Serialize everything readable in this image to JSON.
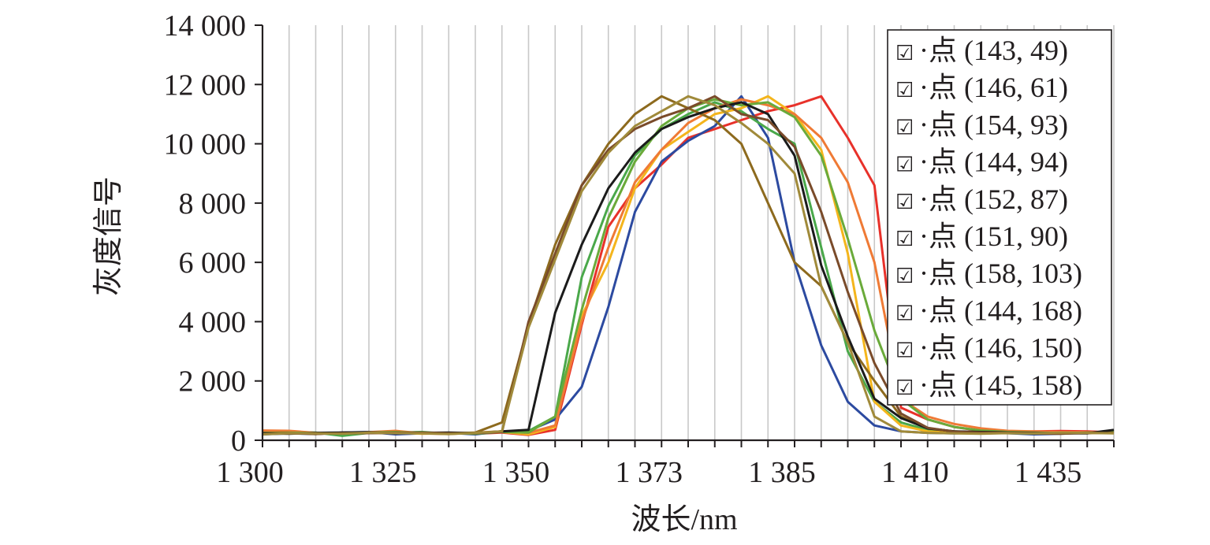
{
  "chart_data": {
    "type": "line",
    "title": "",
    "xlabel": "波长/nm",
    "ylabel": "灰度信号",
    "x_tick_labels": [
      "1 300",
      "1 325",
      "1 350",
      "1 373",
      "1 385",
      "1 410",
      "1 435"
    ],
    "y_tick_labels": [
      "0",
      "2 000",
      "4 000",
      "6 000",
      "8 000",
      "10 000",
      "12 000",
      "14 000"
    ],
    "ylim": [
      0,
      14000
    ],
    "xlim": [
      0,
      32
    ],
    "grid": true,
    "legend_position": "top-right",
    "legend_marker": "☑",
    "series": [
      {
        "name": "·点 (143, 49)",
        "color": "#e8312a",
        "values": [
          250,
          270,
          220,
          240,
          260,
          230,
          250,
          240,
          220,
          260,
          180,
          350,
          3900,
          7200,
          8500,
          9300,
          10200,
          10500,
          10800,
          11100,
          11300,
          11600,
          10200,
          8600,
          1100,
          700,
          450,
          320,
          280,
          300,
          310,
          300,
          260
        ]
      },
      {
        "name": "·点 (146, 61)",
        "color": "#2c4aa0",
        "values": [
          200,
          230,
          210,
          260,
          280,
          200,
          230,
          250,
          200,
          300,
          320,
          700,
          1800,
          4500,
          7700,
          9400,
          10100,
          10600,
          11600,
          10200,
          6000,
          3200,
          1300,
          500,
          300,
          250,
          230,
          260,
          240,
          200,
          220,
          250,
          280
        ]
      },
      {
        "name": "·点 (154, 93)",
        "color": "#4aa84a",
        "values": [
          300,
          280,
          260,
          150,
          250,
          260,
          280,
          220,
          250,
          300,
          310,
          800,
          5500,
          7900,
          9600,
          10500,
          11000,
          11400,
          11100,
          10500,
          10000,
          6500,
          3000,
          1300,
          600,
          350,
          300,
          260,
          240,
          230,
          250,
          260,
          280
        ]
      },
      {
        "name": "·点 (144, 94)",
        "color": "#f4b51c",
        "values": [
          220,
          260,
          230,
          250,
          240,
          260,
          220,
          230,
          250,
          280,
          200,
          450,
          4200,
          6000,
          8500,
          9800,
          10400,
          11000,
          11200,
          11600,
          11000,
          9800,
          6300,
          1300,
          500,
          300,
          250,
          280,
          260,
          250,
          230,
          240,
          260
        ]
      },
      {
        "name": "·点 (152, 87)",
        "color": "#ef7a35",
        "values": [
          330,
          320,
          250,
          240,
          270,
          320,
          230,
          210,
          260,
          300,
          250,
          500,
          4000,
          6500,
          8700,
          9800,
          10700,
          11200,
          11500,
          11300,
          11000,
          10200,
          8700,
          6000,
          1400,
          800,
          550,
          400,
          320,
          300,
          280,
          270,
          250
        ]
      },
      {
        "name": "·点 (151, 90)",
        "color": "#6aaa3a",
        "values": [
          250,
          260,
          240,
          230,
          260,
          280,
          240,
          250,
          220,
          280,
          260,
          800,
          4400,
          7500,
          9400,
          10600,
          11200,
          11500,
          11300,
          11400,
          10900,
          9600,
          6800,
          3700,
          1400,
          700,
          450,
          330,
          280,
          260,
          240,
          260,
          280
        ]
      },
      {
        "name": "·点 (158, 103)",
        "color": "#8d6a1e",
        "values": [
          240,
          250,
          210,
          260,
          250,
          260,
          240,
          230,
          260,
          600,
          3900,
          6600,
          8600,
          10000,
          11000,
          11600,
          11200,
          10800,
          10000,
          8000,
          6000,
          5200,
          3300,
          2000,
          800,
          400,
          300,
          260,
          250,
          230,
          220,
          260,
          250
        ]
      },
      {
        "name": "·点 (144, 168)",
        "color": "#1b1b1b",
        "values": [
          230,
          220,
          250,
          260,
          270,
          230,
          250,
          260,
          240,
          300,
          350,
          4300,
          6600,
          8500,
          9700,
          10500,
          10900,
          11200,
          11400,
          11000,
          9600,
          5900,
          3500,
          1400,
          750,
          400,
          300,
          280,
          260,
          250,
          240,
          230,
          350
        ]
      },
      {
        "name": "·点 (146, 150)",
        "color": "#7a4b2a",
        "values": [
          210,
          230,
          220,
          230,
          240,
          250,
          260,
          230,
          240,
          280,
          4000,
          6300,
          8600,
          9800,
          10500,
          10900,
          11200,
          11600,
          11000,
          10800,
          9900,
          7700,
          5000,
          2600,
          900,
          420,
          290,
          260,
          250,
          240,
          230,
          250,
          240
        ]
      },
      {
        "name": "·点 (145, 158)",
        "color": "#a08a3a",
        "values": [
          200,
          240,
          230,
          220,
          260,
          240,
          230,
          210,
          250,
          300,
          3800,
          6100,
          8400,
          9700,
          10600,
          11100,
          11600,
          11300,
          10700,
          10000,
          9000,
          5200,
          3300,
          800,
          300,
          250,
          230,
          220,
          240,
          230,
          260,
          250,
          230
        ]
      }
    ]
  }
}
